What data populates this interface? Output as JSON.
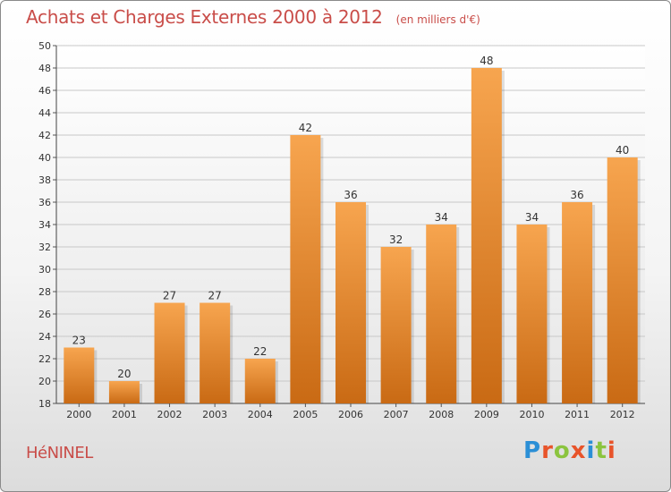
{
  "header": {
    "title": "Achats et Charges Externes 2000 à 2012",
    "subtitle": "(en milliers d'€)"
  },
  "footer": {
    "commune": "HéNINEL",
    "brand_letters": [
      {
        "ch": "P",
        "color": "#2b8fd6"
      },
      {
        "ch": "r",
        "color": "#e8542a"
      },
      {
        "ch": "o",
        "color": "#8bc43f"
      },
      {
        "ch": "x",
        "color": "#e8542a"
      },
      {
        "ch": "i",
        "color": "#2b8fd6"
      },
      {
        "ch": "t",
        "color": "#8bc43f"
      },
      {
        "ch": "i",
        "color": "#e8542a"
      }
    ]
  },
  "colors": {
    "bar_light": "#f7a54f",
    "bar_dark": "#c96a14",
    "title": "#c94d49",
    "grid": "#c8c8c8"
  },
  "chart_data": {
    "type": "bar",
    "title": "Achats et Charges Externes 2000 à 2012",
    "subtitle": "(en milliers d'€)",
    "categories": [
      "2000",
      "2001",
      "2002",
      "2003",
      "2004",
      "2005",
      "2006",
      "2007",
      "2008",
      "2009",
      "2010",
      "2011",
      "2012"
    ],
    "values": [
      23,
      20,
      27,
      27,
      22,
      42,
      36,
      32,
      34,
      48,
      34,
      36,
      40
    ],
    "ylim": [
      18,
      50
    ],
    "yticks": [
      18,
      20,
      22,
      24,
      26,
      28,
      30,
      32,
      34,
      36,
      38,
      40,
      42,
      44,
      46,
      48,
      50
    ],
    "grid": true,
    "data_labels": true
  }
}
